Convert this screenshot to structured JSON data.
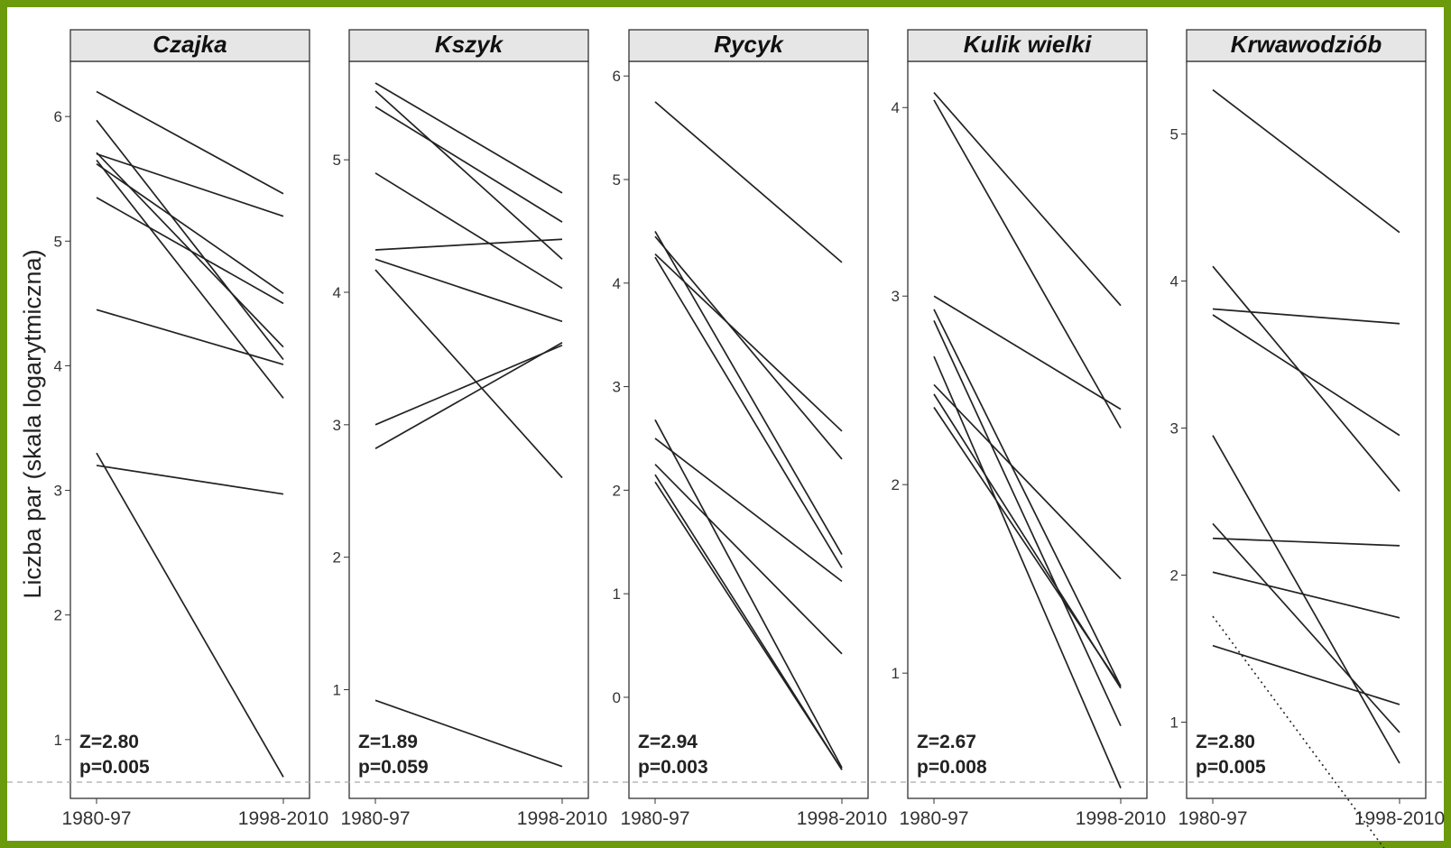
{
  "colors": {
    "frame": "#6b9a0d",
    "strip_bg": "#e6e6e6",
    "line": "#222222",
    "reference_line": "#aaaaaa"
  },
  "chart_data": {
    "type": "line",
    "ylabel": "Liczba par (skala logarytmiczna)",
    "x_categories": [
      "1980-97",
      "1998-2010"
    ],
    "panels": [
      {
        "title": "Czajka",
        "yticks": [
          "1",
          "2",
          "3",
          "4",
          "5",
          "6"
        ],
        "ylim": [
          0.55,
          6.45
        ],
        "stat_z": "Z=2.80",
        "stat_p": "p=0.005",
        "series": [
          {
            "values": [
              6.2,
              5.38
            ]
          },
          {
            "values": [
              5.97,
              4.05
            ]
          },
          {
            "values": [
              5.71,
              4.15
            ]
          },
          {
            "values": [
              5.7,
              5.2
            ]
          },
          {
            "values": [
              5.65,
              3.74
            ]
          },
          {
            "values": [
              5.62,
              4.58
            ]
          },
          {
            "values": [
              5.35,
              4.5
            ]
          },
          {
            "values": [
              4.45,
              4.01
            ]
          },
          {
            "values": [
              3.3,
              0.7
            ]
          },
          {
            "values": [
              3.2,
              2.97
            ]
          }
        ]
      },
      {
        "title": "Kszyk",
        "yticks": [
          "1",
          "2",
          "3",
          "4",
          "5"
        ],
        "ylim": [
          0.2,
          5.75
        ],
        "stat_z": "Z=1.89",
        "stat_p": "p=0.059",
        "series": [
          {
            "values": [
              5.58,
              4.75
            ]
          },
          {
            "values": [
              5.52,
              4.25
            ]
          },
          {
            "values": [
              5.4,
              4.53
            ]
          },
          {
            "values": [
              4.9,
              4.03
            ]
          },
          {
            "values": [
              4.32,
              4.4
            ]
          },
          {
            "values": [
              4.25,
              3.78
            ]
          },
          {
            "values": [
              4.17,
              2.6
            ]
          },
          {
            "values": [
              3.0,
              3.6
            ]
          },
          {
            "values": [
              2.82,
              3.62
            ]
          },
          {
            "values": [
              0.92,
              0.42
            ]
          }
        ]
      },
      {
        "title": "Rycyk",
        "yticks": [
          "0",
          "1",
          "2",
          "3",
          "4",
          "5",
          "6"
        ],
        "ylim": [
          -0.95,
          6.15
        ],
        "stat_z": "Z=2.94",
        "stat_p": "p=0.003",
        "series": [
          {
            "values": [
              5.75,
              4.2
            ]
          },
          {
            "values": [
              4.5,
              1.38
            ]
          },
          {
            "values": [
              4.45,
              2.3
            ]
          },
          {
            "values": [
              4.28,
              2.57
            ]
          },
          {
            "values": [
              4.25,
              1.25
            ]
          },
          {
            "values": [
              2.68,
              -0.68
            ]
          },
          {
            "values": [
              2.5,
              1.12
            ]
          },
          {
            "values": [
              2.25,
              0.42
            ]
          },
          {
            "values": [
              2.15,
              -0.7
            ]
          },
          {
            "values": [
              2.08,
              -0.7
            ]
          }
        ]
      },
      {
        "title": "Kulik wielki",
        "yticks": [
          "1",
          "2",
          "3",
          "4"
        ],
        "ylim": [
          0.35,
          4.25
        ],
        "stat_z": "Z=2.67",
        "stat_p": "p=0.008",
        "series": [
          {
            "values": [
              4.08,
              2.95
            ]
          },
          {
            "values": [
              4.04,
              2.3
            ]
          },
          {
            "values": [
              3.0,
              2.4
            ]
          },
          {
            "values": [
              2.93,
              0.93
            ]
          },
          {
            "values": [
              2.87,
              0.72
            ]
          },
          {
            "values": [
              2.68,
              0.39
            ]
          },
          {
            "values": [
              2.53,
              1.5
            ]
          },
          {
            "values": [
              2.48,
              0.92
            ]
          },
          {
            "values": [
              2.41,
              0.93
            ]
          }
        ]
      },
      {
        "title": "Krwawodziób",
        "yticks": [
          "1",
          "2",
          "3",
          "4",
          "5"
        ],
        "ylim": [
          0.5,
          5.5
        ],
        "stat_z": "Z=2.80",
        "stat_p": "p=0.005",
        "series": [
          {
            "values": [
              5.3,
              4.33
            ]
          },
          {
            "values": [
              4.1,
              2.57
            ]
          },
          {
            "values": [
              3.81,
              3.71
            ]
          },
          {
            "values": [
              3.77,
              2.95
            ]
          },
          {
            "values": [
              2.95,
              0.72
            ]
          },
          {
            "values": [
              2.35,
              0.93
            ]
          },
          {
            "values": [
              2.25,
              2.2
            ]
          },
          {
            "values": [
              2.02,
              1.71
            ]
          },
          {
            "values": [
              1.52,
              1.12
            ]
          },
          {
            "values": [
              1.72,
              0.0
            ],
            "dotted": true
          }
        ]
      }
    ]
  }
}
